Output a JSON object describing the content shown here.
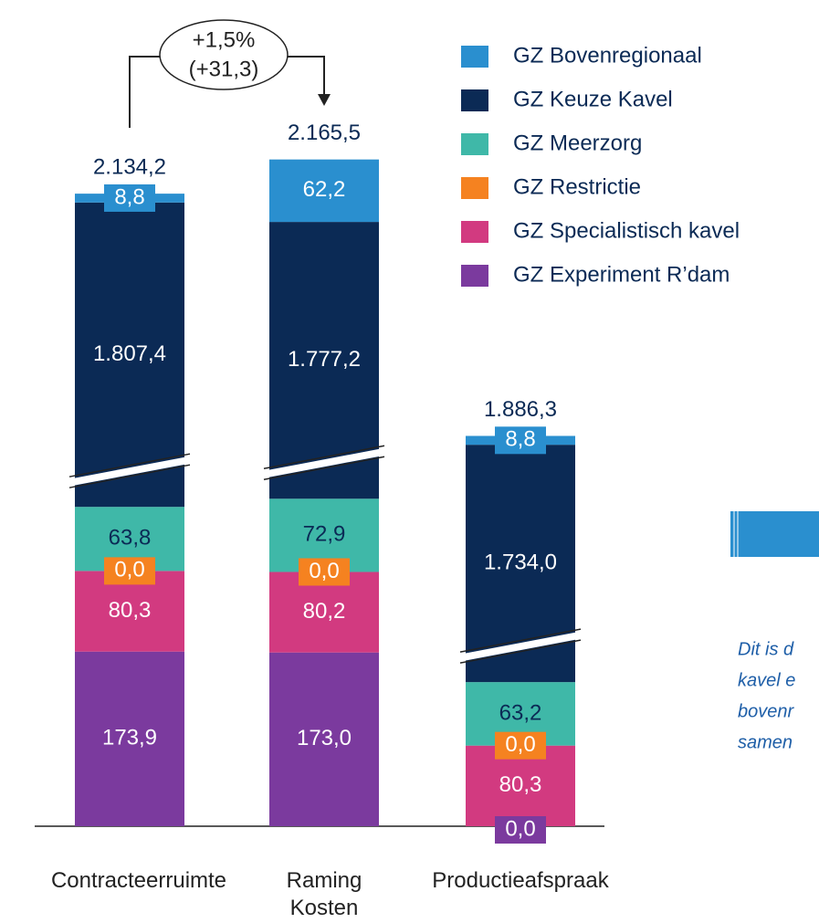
{
  "chart_data": {
    "type": "stacked_bar",
    "categories": [
      "Contracteerruimte",
      "Raming Kosten",
      "Productieafspraak"
    ],
    "series": [
      {
        "name": "GZ Bovenregionaal",
        "color": "#2a8fcf",
        "values": [
          8.8,
          62.2,
          8.8
        ],
        "value_labels": [
          "8,8",
          "62,2",
          "8,8"
        ]
      },
      {
        "name": "GZ Keuze Kavel",
        "color": "#0b2a55",
        "values": [
          1807.4,
          1777.2,
          1734.0
        ],
        "value_labels": [
          "1.807,4",
          "1.777,2",
          "1.734,0"
        ]
      },
      {
        "name": "GZ Meerzorg",
        "color": "#3fb8a8",
        "values": [
          63.8,
          72.9,
          63.2
        ],
        "value_labels": [
          "63,8",
          "72,9",
          "63,2"
        ]
      },
      {
        "name": "GZ Restrictie",
        "color": "#f58220",
        "values": [
          0.0,
          0.0,
          0.0
        ],
        "value_labels": [
          "0,0",
          "0,0",
          "0,0"
        ]
      },
      {
        "name": "GZ Specialistisch kavel",
        "color": "#d23a80",
        "values": [
          80.3,
          80.2,
          80.3
        ],
        "value_labels": [
          "80,3",
          "80,2",
          "80,3"
        ]
      },
      {
        "name": "GZ Experiment R’dam",
        "color": "#7b3a9e",
        "values": [
          173.9,
          173.0,
          0.0
        ],
        "value_labels": [
          "173,9",
          "173,0",
          "0,0"
        ]
      }
    ],
    "totals": [
      2134.2,
      2165.5,
      1886.3
    ],
    "total_labels": [
      "2.134,2",
      "2.165,5",
      "1.886,3"
    ],
    "annotation": [
      "+1,5%",
      "(+31,3)"
    ],
    "side_note": [
      "Dit is d",
      "kavel e",
      "bovenr",
      "samen"
    ]
  }
}
